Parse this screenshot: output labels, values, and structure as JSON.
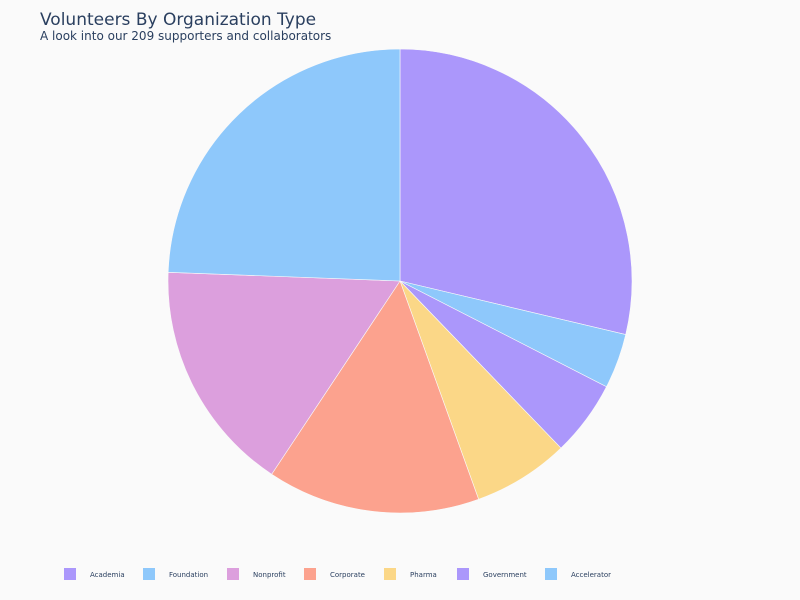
{
  "chart_data": {
    "type": "pie",
    "title": "Volunteers By Organization Type",
    "subtitle": "A look into our 209 supporters and collaborators",
    "legend_position": "bottom",
    "direction": "clockwise",
    "start_angle": "top",
    "slices": [
      {
        "label": "Academia",
        "value": 60,
        "color": "#ab97fb"
      },
      {
        "label": "Accelerator",
        "value": 8,
        "color": "#8ec8fb"
      },
      {
        "label": "Government",
        "value": 11,
        "color": "#ab97fb"
      },
      {
        "label": "Pharma",
        "value": 14,
        "color": "#fbd787"
      },
      {
        "label": "Corporate",
        "value": 31,
        "color": "#fca28e"
      },
      {
        "label": "Nonprofit",
        "value": 34,
        "color": "#dc9fdd"
      },
      {
        "label": "Foundation",
        "value": 51,
        "color": "#8ec8fb"
      }
    ],
    "legend": [
      {
        "label": "Academia",
        "color": "#ab97fb"
      },
      {
        "label": "Foundation",
        "color": "#8ec8fb"
      },
      {
        "label": "Nonprofit",
        "color": "#dc9fdd"
      },
      {
        "label": "Corporate",
        "color": "#fca28e"
      },
      {
        "label": "Pharma",
        "color": "#fbd787"
      },
      {
        "label": "Government",
        "color": "#ab97fb"
      },
      {
        "label": "Accelerator",
        "color": "#8ec8fb"
      }
    ]
  }
}
